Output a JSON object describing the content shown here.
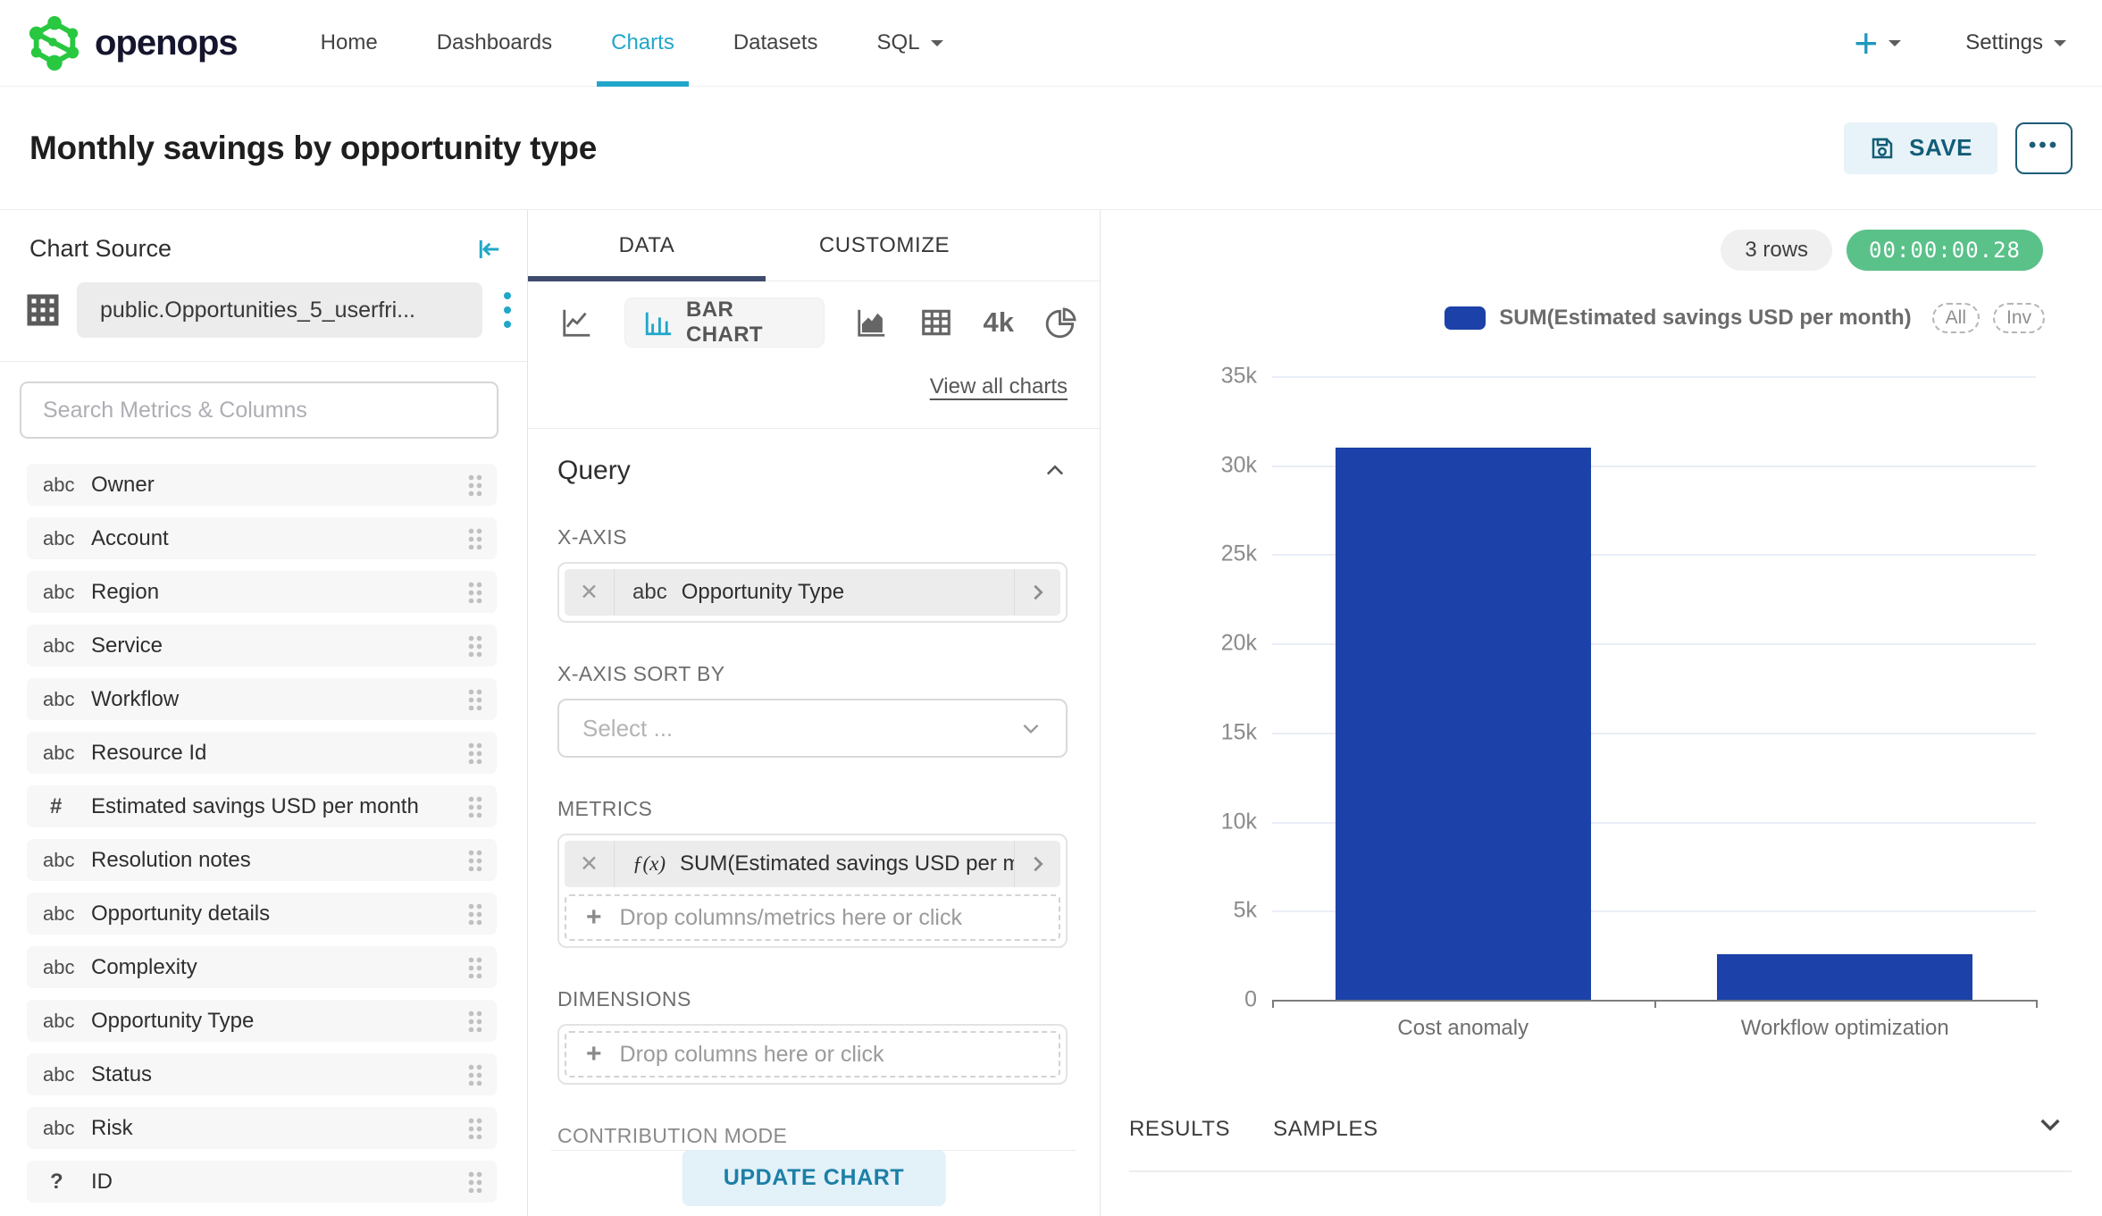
{
  "nav": {
    "brand": "openops",
    "items": [
      {
        "label": "Home"
      },
      {
        "label": "Dashboards"
      },
      {
        "label": "Charts"
      },
      {
        "label": "Datasets"
      },
      {
        "label": "SQL"
      }
    ],
    "add_label": "+",
    "settings_label": "Settings"
  },
  "header": {
    "title": "Monthly savings by opportunity type",
    "save_label": "SAVE",
    "more_label": "•••"
  },
  "icons": {
    "close": "✕",
    "plus": "+"
  },
  "chart_source": {
    "heading": "Chart Source",
    "dataset_name": "public.Opportunities_5_userfri...",
    "search_placeholder": "Search Metrics & Columns",
    "columns": [
      {
        "type": "abc",
        "label": "Owner"
      },
      {
        "type": "abc",
        "label": "Account"
      },
      {
        "type": "abc",
        "label": "Region"
      },
      {
        "type": "abc",
        "label": "Service"
      },
      {
        "type": "abc",
        "label": "Workflow"
      },
      {
        "type": "abc",
        "label": "Resource Id"
      },
      {
        "type": "#",
        "label": "Estimated savings USD per month"
      },
      {
        "type": "abc",
        "label": "Resolution notes"
      },
      {
        "type": "abc",
        "label": "Opportunity details"
      },
      {
        "type": "abc",
        "label": "Complexity"
      },
      {
        "type": "abc",
        "label": "Opportunity Type"
      },
      {
        "type": "abc",
        "label": "Status"
      },
      {
        "type": "abc",
        "label": "Risk"
      },
      {
        "type": "?",
        "label": "ID"
      }
    ]
  },
  "controls": {
    "tabs": [
      {
        "label": "DATA"
      },
      {
        "label": "CUSTOMIZE"
      }
    ],
    "viz": {
      "selected_label": "BAR CHART",
      "big_number_label": "4k",
      "view_all_label": "View all charts"
    },
    "query": {
      "heading": "Query",
      "x_axis_label": "X-AXIS",
      "x_axis_value_type": "abc",
      "x_axis_value": "Opportunity Type",
      "x_axis_sort_label": "X-AXIS SORT BY",
      "x_axis_sort_placeholder": "Select ...",
      "metrics_label": "METRICS",
      "metric_fn": "ƒ(x)",
      "metric_value": "SUM(Estimated savings USD per m...",
      "metrics_drop_placeholder": "Drop columns/metrics here or click",
      "dimensions_label": "DIMENSIONS",
      "dimensions_drop_placeholder": "Drop columns here or click",
      "contribution_label": "CONTRIBUTION MODE",
      "update_button": "UPDATE CHART"
    }
  },
  "chart_panel": {
    "rows_badge": "3 rows",
    "timer": "00:00:00.28",
    "timer_color": "#5ac189",
    "legend_all": "All",
    "legend_inv": "Inv",
    "results_tab": "RESULTS",
    "samples_tab": "SAMPLES"
  },
  "chart_data": {
    "type": "bar",
    "title": "",
    "categories": [
      "Cost anomaly",
      "Workflow optimization"
    ],
    "series": [
      {
        "name": "SUM(Estimated savings USD per month)",
        "values": [
          31000,
          2560
        ]
      }
    ],
    "xlabel": "",
    "ylabel": "",
    "ylim": [
      0,
      35000
    ],
    "yticks": [
      0,
      5000,
      10000,
      15000,
      20000,
      25000,
      30000,
      35000
    ],
    "ytick_labels": [
      "0",
      "5k",
      "10k",
      "15k",
      "20k",
      "25k",
      "30k",
      "35k"
    ],
    "grid": true,
    "legend_position": "top-right",
    "bar_color": "#1c41a8"
  }
}
